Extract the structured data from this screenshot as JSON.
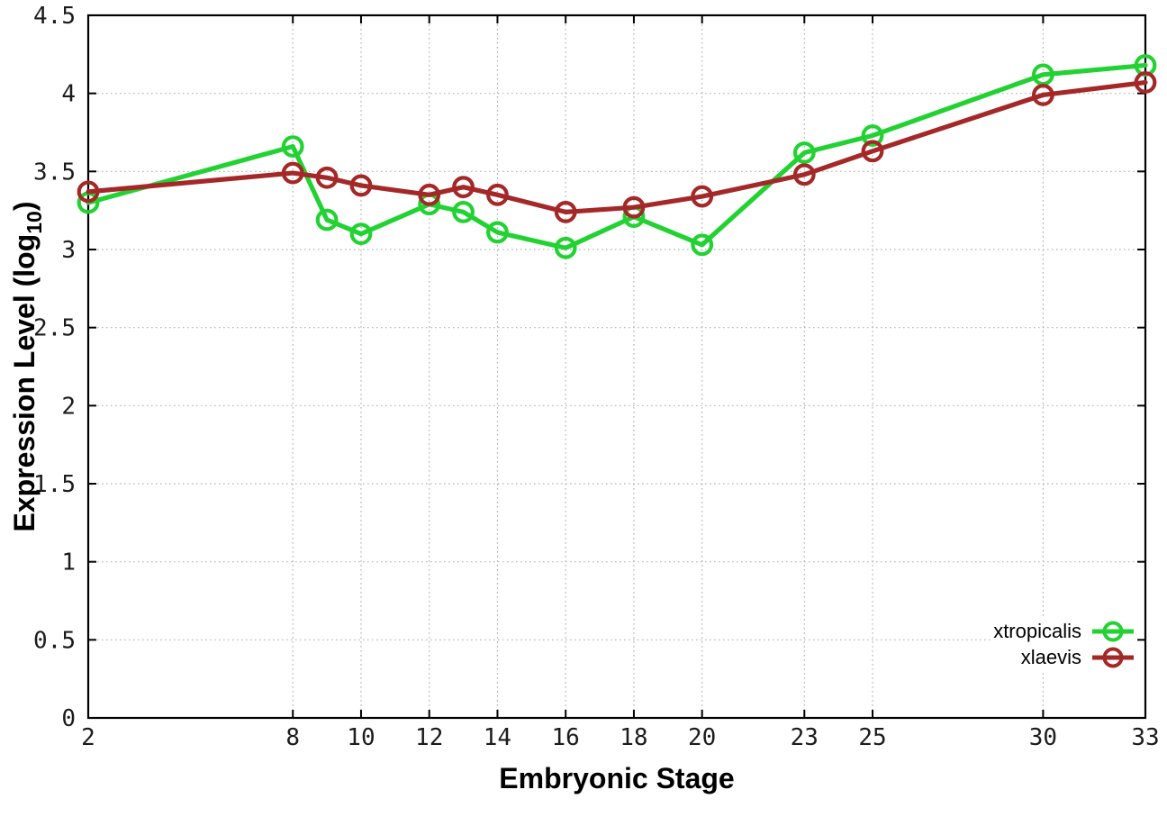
{
  "chart_data": {
    "type": "line",
    "title": "",
    "xlabel": "Embryonic Stage",
    "ylabel": {
      "prefix": "Expression Level (log",
      "sub": "10",
      "suffix": ")"
    },
    "xlim": [
      2,
      33
    ],
    "ylim": [
      0,
      4.5
    ],
    "grid": true,
    "legend_position": "inside-bottom-right",
    "x": [
      2,
      8,
      9,
      10,
      12,
      13,
      14,
      16,
      18,
      20,
      23,
      25,
      30,
      33
    ],
    "xticks": {
      "values": [
        2,
        8,
        10,
        12,
        14,
        16,
        18,
        20,
        23,
        25,
        30,
        33
      ],
      "labels": [
        "2",
        "8",
        "10",
        "12",
        "14",
        "16",
        "18",
        "20",
        "23",
        "25",
        "30",
        "33"
      ]
    },
    "yticks": {
      "values": [
        0,
        0.5,
        1,
        1.5,
        2,
        2.5,
        3,
        3.5,
        4,
        4.5
      ],
      "labels": [
        "0",
        "0.5",
        "1",
        "1.5",
        "2",
        "2.5",
        "3",
        "3.5",
        "4",
        "4.5"
      ]
    },
    "series": [
      {
        "name": "xtropicalis",
        "color": "#22d232",
        "marker": "open-circle",
        "values": [
          3.3,
          3.66,
          3.19,
          3.1,
          3.29,
          3.24,
          3.11,
          3.01,
          3.21,
          3.03,
          3.62,
          3.73,
          4.12,
          4.18
        ]
      },
      {
        "name": "xlaevis",
        "color": "#a52828",
        "marker": "open-circle",
        "values": [
          3.37,
          3.49,
          3.46,
          3.41,
          3.35,
          3.4,
          3.35,
          3.24,
          3.27,
          3.34,
          3.48,
          3.63,
          3.99,
          4.07
        ]
      }
    ],
    "style": {
      "background": "#ffffff",
      "border_color": "#000000",
      "grid_color": "#b3b3b3",
      "tick_label_color": "#1c1c1c",
      "axis_title_color": "#000000",
      "legend_text_color": "#000000"
    }
  }
}
